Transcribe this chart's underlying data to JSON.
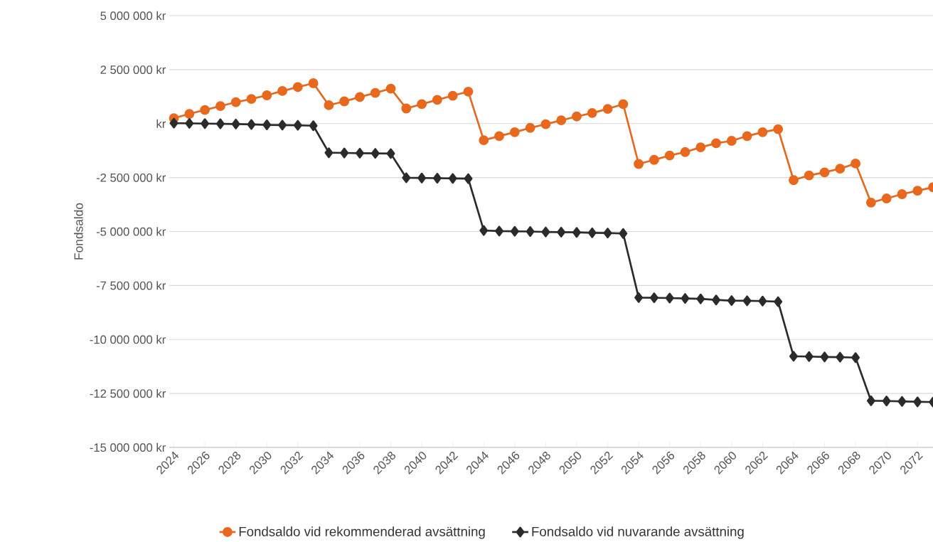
{
  "chart_data": {
    "type": "line",
    "ylabel": "Fondsaldo",
    "x": [
      2024,
      2025,
      2026,
      2027,
      2028,
      2029,
      2030,
      2031,
      2032,
      2033,
      2034,
      2035,
      2036,
      2037,
      2038,
      2039,
      2040,
      2041,
      2042,
      2043,
      2044,
      2045,
      2046,
      2047,
      2048,
      2049,
      2050,
      2051,
      2052,
      2053,
      2054,
      2055,
      2056,
      2057,
      2058,
      2059,
      2060,
      2061,
      2062,
      2063,
      2064,
      2065,
      2066,
      2067,
      2068,
      2069,
      2070,
      2071,
      2072,
      2073
    ],
    "series": [
      {
        "name": "Fondsaldo vid rekommenderad avsättning",
        "color": "#e8681e",
        "marker": "circle",
        "values": [
          250000,
          450000,
          630000,
          810000,
          990000,
          1140000,
          1310000,
          1510000,
          1690000,
          1870000,
          850000,
          1030000,
          1230000,
          1420000,
          1620000,
          700000,
          900000,
          1100000,
          1290000,
          1480000,
          -770000,
          -580000,
          -400000,
          -200000,
          -30000,
          150000,
          330000,
          490000,
          680000,
          900000,
          -1870000,
          -1680000,
          -1480000,
          -1320000,
          -1100000,
          -910000,
          -800000,
          -580000,
          -400000,
          -260000,
          -2620000,
          -2400000,
          -2260000,
          -2090000,
          -1850000,
          -3660000,
          -3470000,
          -3270000,
          -3110000,
          -2950000
        ]
      },
      {
        "name": "Fondsaldo vid nuvarande avsättning",
        "color": "#2b2b2b",
        "marker": "diamond",
        "values": [
          20000,
          10000,
          0,
          -10000,
          -20000,
          -40000,
          -60000,
          -70000,
          -80000,
          -100000,
          -1350000,
          -1360000,
          -1370000,
          -1380000,
          -1390000,
          -2510000,
          -2520000,
          -2530000,
          -2540000,
          -2550000,
          -4950000,
          -4980000,
          -4990000,
          -5000000,
          -5020000,
          -5030000,
          -5040000,
          -5060000,
          -5070000,
          -5090000,
          -8060000,
          -8070000,
          -8080000,
          -8100000,
          -8120000,
          -8170000,
          -8200000,
          -8210000,
          -8220000,
          -8250000,
          -10780000,
          -10790000,
          -10810000,
          -10820000,
          -10840000,
          -12840000,
          -12850000,
          -12870000,
          -12890000,
          -12900000
        ]
      }
    ],
    "xlim": [
      2023.7,
      2073
    ],
    "xticks": [
      2024,
      2026,
      2028,
      2030,
      2032,
      2034,
      2036,
      2038,
      2040,
      2042,
      2044,
      2046,
      2048,
      2050,
      2052,
      2054,
      2056,
      2058,
      2060,
      2062,
      2064,
      2066,
      2068,
      2070,
      2072
    ],
    "ylim": [
      -15000000,
      5000000
    ],
    "yticks": [
      {
        "value": 5000000,
        "label": "5 000 000 kr"
      },
      {
        "value": 2500000,
        "label": "2 500 000 kr"
      },
      {
        "value": 0,
        "label": "kr"
      },
      {
        "value": -2500000,
        "label": "-2 500 000 kr"
      },
      {
        "value": -5000000,
        "label": "-5 000 000 kr"
      },
      {
        "value": -7500000,
        "label": "-7 500 000 kr"
      },
      {
        "value": -10000000,
        "label": "-10 000 000 kr"
      },
      {
        "value": -12500000,
        "label": "-12 500 000 kr"
      },
      {
        "value": -15000000,
        "label": "-15 000 000 kr"
      }
    ],
    "grid": "y",
    "legend": "bottom",
    "line_style": "solid"
  }
}
